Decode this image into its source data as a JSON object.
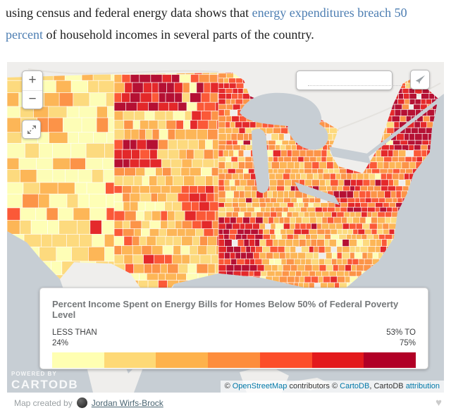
{
  "intro": {
    "before": "using census and federal energy data shows that ",
    "link_text": "energy expenditures breach 50 percent",
    "after": " of household incomes in several parts of the country.",
    "link_color": "#4d7eb2"
  },
  "map": {
    "colors": {
      "land": "#efeeec",
      "water": "#c7ced4",
      "county_border": "#ffffff"
    },
    "controls": {
      "zoom_in": "+",
      "zoom_out": "−",
      "search_placeholder": ""
    },
    "icons": {
      "zoom_in": "plus",
      "zoom_out": "minus",
      "fullscreen": "expand-diagonal-arrows",
      "search": "magnifier",
      "share": "paper-plane",
      "heart": "♥"
    },
    "legend": {
      "title": "Percent Income Spent on Energy Bills for Homes Below 50% of Federal Poverty Level",
      "min_label_line1": "LESS THAN",
      "min_label_line2": "24%",
      "max_label_line1": "53% TO",
      "max_label_line2": "75%",
      "colors": [
        "#ffffb2",
        "#fed976",
        "#feb24c",
        "#fd8d3c",
        "#fc4e2a",
        "#e31a1c",
        "#b10026"
      ]
    },
    "powered_by": {
      "line1": "POWERED BY",
      "line2": "CARTODB"
    },
    "attribution": {
      "segments": [
        {
          "text": "© "
        },
        {
          "text": "OpenStreetMap"
        },
        {
          "text": " contributors © "
        },
        {
          "text": "CartoDB"
        },
        {
          "text": ", CartoDB "
        },
        {
          "text": "attribution"
        }
      ],
      "link_color": "#0078a8"
    }
  },
  "footer": {
    "created_by": "Map created by",
    "author": "Jordan Wirfs-Brock",
    "heart": "♥"
  }
}
